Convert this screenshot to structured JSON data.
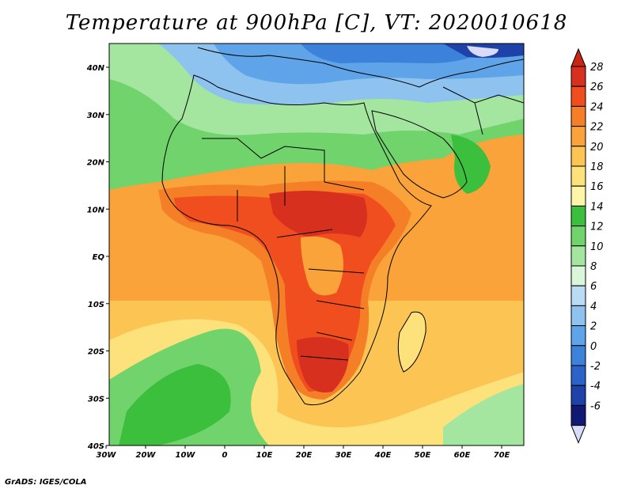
{
  "title": "Temperature at 900hPa [C], VT: 2020010618",
  "credit": "GrADS: IGES/COLA",
  "map": {
    "variable": "Temperature at 900hPa",
    "units": "C",
    "valid_time": "2020010618",
    "lat_ticks": [
      "40N",
      "30N",
      "20N",
      "10N",
      "EQ",
      "10S",
      "20S",
      "30S",
      "40S"
    ],
    "lon_ticks": [
      "30W",
      "20W",
      "10W",
      "0",
      "10E",
      "20E",
      "30E",
      "40E",
      "50E",
      "60E",
      "70E"
    ]
  },
  "colorbar": {
    "labels": [
      "28",
      "26",
      "24",
      "22",
      "20",
      "18",
      "16",
      "14",
      "12",
      "10",
      "8",
      "6",
      "4",
      "2",
      "0",
      "-2",
      "-4",
      "-6"
    ],
    "colors": [
      "#d7301f",
      "#f04e1f",
      "#f57f27",
      "#f9a33a",
      "#fbc453",
      "#fde17a",
      "#fff5a8",
      "#3cbf3c",
      "#71d36b",
      "#a4e6a0",
      "#d9f6d8",
      "#b9dcf4",
      "#8ec2ef",
      "#5fa4e8",
      "#3c82da",
      "#2d62c8",
      "#1e42a8",
      "#101a74"
    ],
    "top_color": "#c82813",
    "bottom_color": "#d8dcf8"
  }
}
